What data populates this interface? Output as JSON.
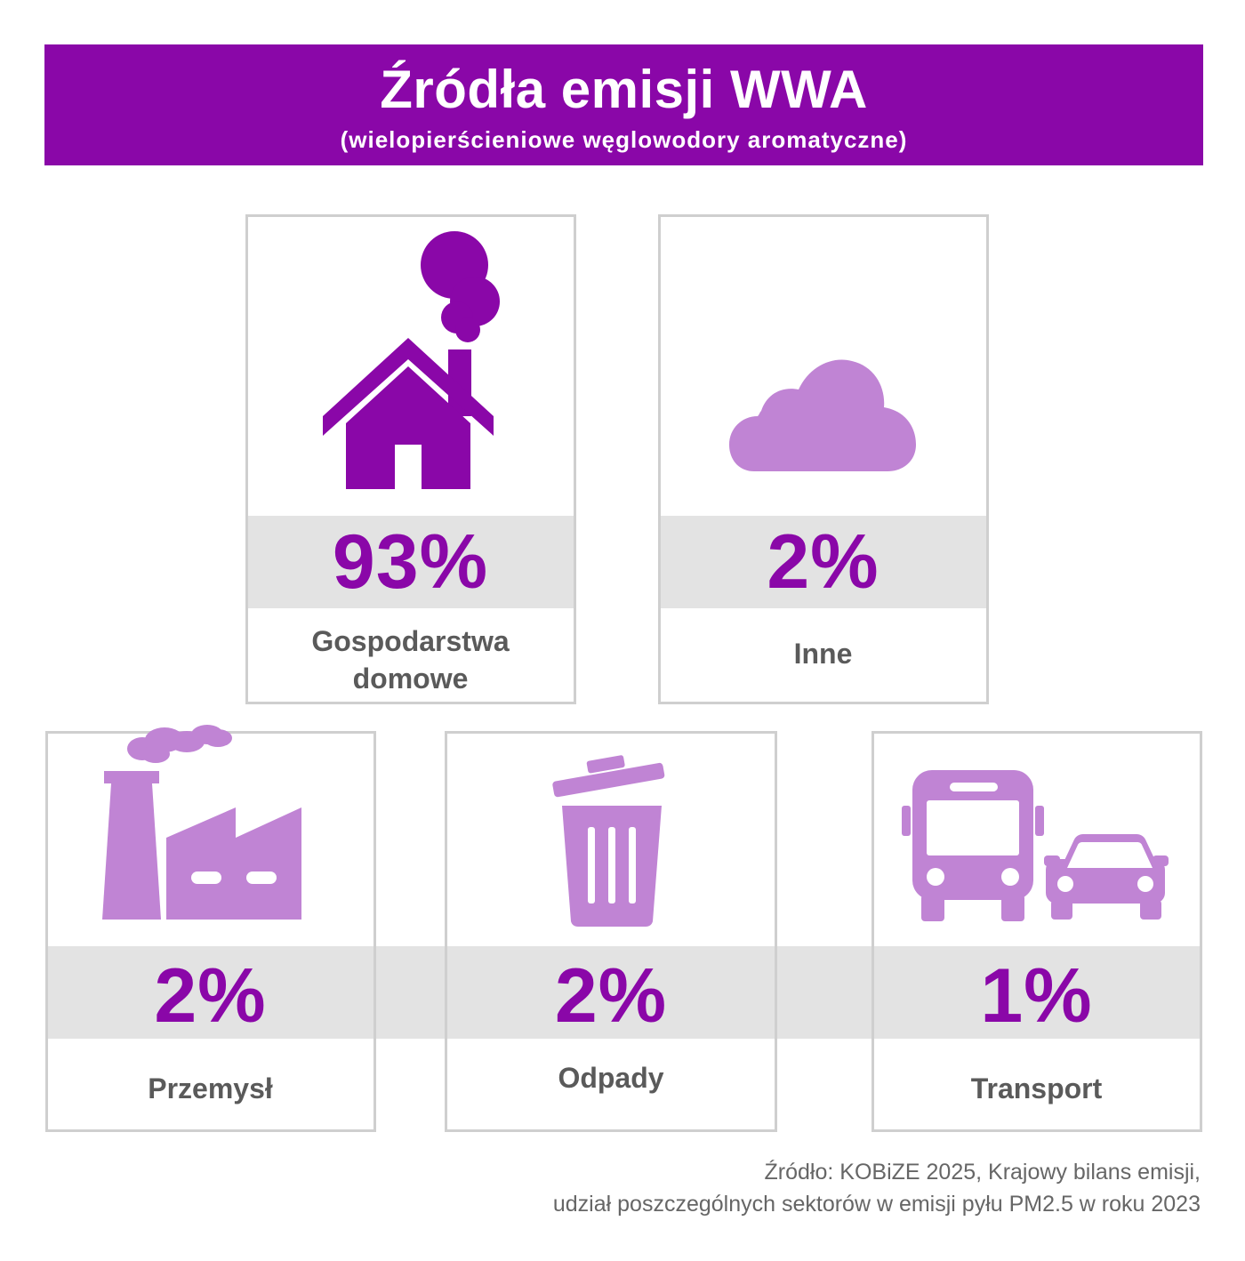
{
  "header": {
    "title": "Źródła emisji WWA",
    "subtitle": "(wielopierścieniowe węglowodory aromatyczne)"
  },
  "colors": {
    "banner": "#8a07a8",
    "primary_value": "#8a07a8",
    "secondary_icon": "#c084d4",
    "band": "#e3e3e3",
    "label": "#5a5a5a"
  },
  "chart_data": {
    "type": "table",
    "categories": [
      "Gospodarstwa domowe",
      "Inne",
      "Przemysł",
      "Odpady",
      "Transport"
    ],
    "values": [
      93,
      2,
      2,
      2,
      1
    ],
    "items": [
      {
        "label_lines": [
          "Gospodarstwa",
          "domowe"
        ],
        "value": 93,
        "display": "93%",
        "icon": "house-chimney-smoke-icon"
      },
      {
        "label_lines": [
          "Inne"
        ],
        "value": 2,
        "display": "2%",
        "icon": "cloud-icon"
      },
      {
        "label_lines": [
          "Przemysł"
        ],
        "value": 2,
        "display": "2%",
        "icon": "factory-icon"
      },
      {
        "label_lines": [
          "Odpady"
        ],
        "value": 2,
        "display": "2%",
        "icon": "trash-bin-icon"
      },
      {
        "label_lines": [
          "Transport"
        ],
        "value": 1,
        "display": "1%",
        "icon": "bus-and-car-icon"
      }
    ]
  },
  "source": {
    "line1": "Źródło: KOBiZE 2025, Krajowy bilans emisji,",
    "line2": "udział poszczególnych sektorów w emisji pyłu PM2.5 w roku 2023"
  }
}
